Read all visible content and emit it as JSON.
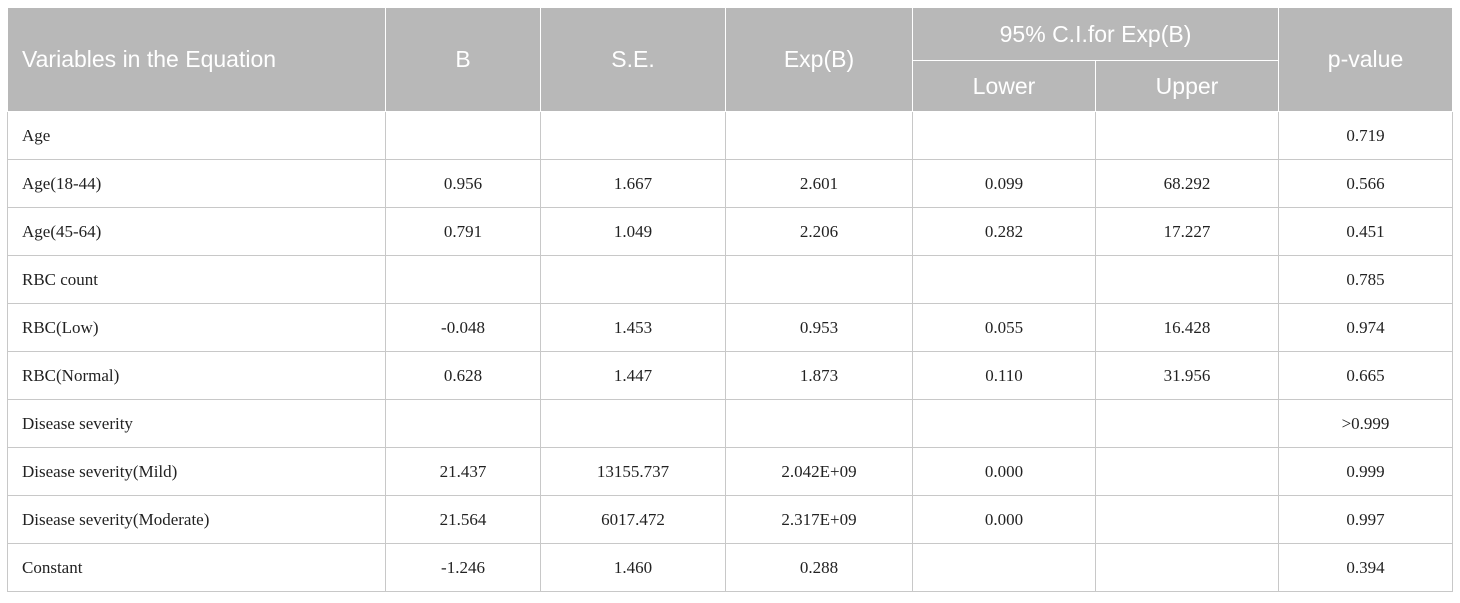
{
  "header": {
    "variables": "Variables in the Equation",
    "b": "B",
    "se": "S.E.",
    "expb": "Exp(B)",
    "ci": "95% C.I.for Exp(B)",
    "lower": "Lower",
    "upper": "Upper",
    "pvalue": "p-value"
  },
  "rows": [
    {
      "label": "Age",
      "b": "",
      "se": "",
      "expb": "",
      "lower": "",
      "upper": "",
      "p": "0.719"
    },
    {
      "label": "Age(18-44)",
      "b": "0.956",
      "se": "1.667",
      "expb": "2.601",
      "lower": "0.099",
      "upper": "68.292",
      "p": "0.566"
    },
    {
      "label": "Age(45-64)",
      "b": "0.791",
      "se": "1.049",
      "expb": "2.206",
      "lower": "0.282",
      "upper": "17.227",
      "p": "0.451"
    },
    {
      "label": "RBC count",
      "b": "",
      "se": "",
      "expb": "",
      "lower": "",
      "upper": "",
      "p": "0.785"
    },
    {
      "label": "RBC(Low)",
      "b": "-0.048",
      "se": "1.453",
      "expb": "0.953",
      "lower": "0.055",
      "upper": "16.428",
      "p": "0.974"
    },
    {
      "label": "RBC(Normal)",
      "b": "0.628",
      "se": "1.447",
      "expb": "1.873",
      "lower": "0.110",
      "upper": "31.956",
      "p": "0.665"
    },
    {
      "label": "Disease severity",
      "b": "",
      "se": "",
      "expb": "",
      "lower": "",
      "upper": "",
      "p": ">0.999"
    },
    {
      "label": "Disease severity(Mild)",
      "b": "21.437",
      "se": "13155.737",
      "expb": "2.042E+09",
      "lower": "0.000",
      "upper": "",
      "p": "0.999"
    },
    {
      "label": "Disease severity(Moderate)",
      "b": "21.564",
      "se": "6017.472",
      "expb": "2.317E+09",
      "lower": "0.000",
      "upper": "",
      "p": "0.997"
    },
    {
      "label": "Constant",
      "b": "-1.246",
      "se": "1.460",
      "expb": "0.288",
      "lower": "",
      "upper": "",
      "p": "0.394"
    }
  ]
}
